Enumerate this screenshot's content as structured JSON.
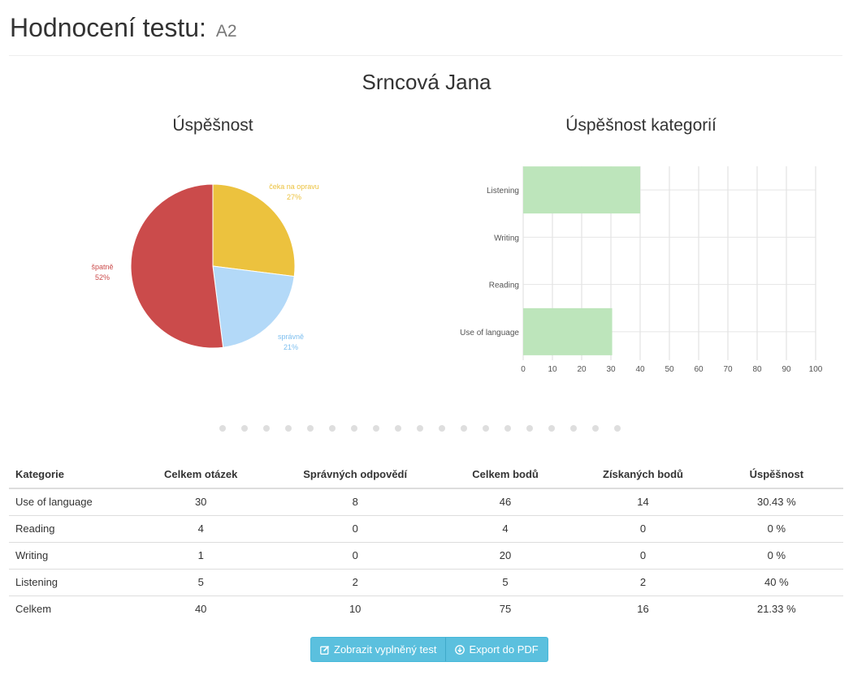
{
  "header": {
    "title": "Hodnocení testu:",
    "test_name": "A2"
  },
  "student": {
    "name": "Srncová Jana"
  },
  "charts": {
    "pie_title": "Úspěšnost",
    "bar_title": "Úspěšnost kategorií"
  },
  "chart_data": [
    {
      "type": "pie",
      "title": "Úspěšnost",
      "slices": [
        {
          "label": "čeka na opravu",
          "value": 27,
          "value_label": "27%",
          "color": "#ecc23e"
        },
        {
          "label": "správně",
          "value": 21,
          "value_label": "21%",
          "color": "#b3d9f8"
        },
        {
          "label": "špatně",
          "value": 52,
          "value_label": "52%",
          "color": "#cb4b4b"
        }
      ]
    },
    {
      "type": "bar",
      "orientation": "horizontal",
      "title": "Úspěšnost kategorií",
      "categories": [
        "Listening",
        "Writing",
        "Reading",
        "Use of language"
      ],
      "values": [
        40,
        0,
        0,
        30.43
      ],
      "color": "#bde5bb",
      "xlim": [
        0,
        100
      ],
      "xticks": [
        "0",
        "10",
        "20",
        "30",
        "40",
        "50",
        "60",
        "70",
        "80",
        "90",
        "100"
      ],
      "grid": true
    }
  ],
  "pagination": {
    "dot_count": 19
  },
  "table": {
    "headers": [
      "Kategorie",
      "Celkem otázek",
      "Správných odpovědí",
      "Celkem bodů",
      "Získaných bodů",
      "Úspěšnost"
    ],
    "rows": [
      [
        "Use of language",
        "30",
        "8",
        "46",
        "14",
        "30.43 %"
      ],
      [
        "Reading",
        "4",
        "0",
        "4",
        "0",
        "0 %"
      ],
      [
        "Writing",
        "1",
        "0",
        "20",
        "0",
        "0 %"
      ],
      [
        "Listening",
        "5",
        "2",
        "5",
        "2",
        "40 %"
      ],
      [
        "Celkem",
        "40",
        "10",
        "75",
        "16",
        "21.33 %"
      ]
    ]
  },
  "buttons": {
    "show_test": {
      "label": "Zobrazit vyplněný test",
      "icon": "edit-icon"
    },
    "export_pdf": {
      "label": "Export do PDF",
      "icon": "download-circle-icon"
    }
  }
}
